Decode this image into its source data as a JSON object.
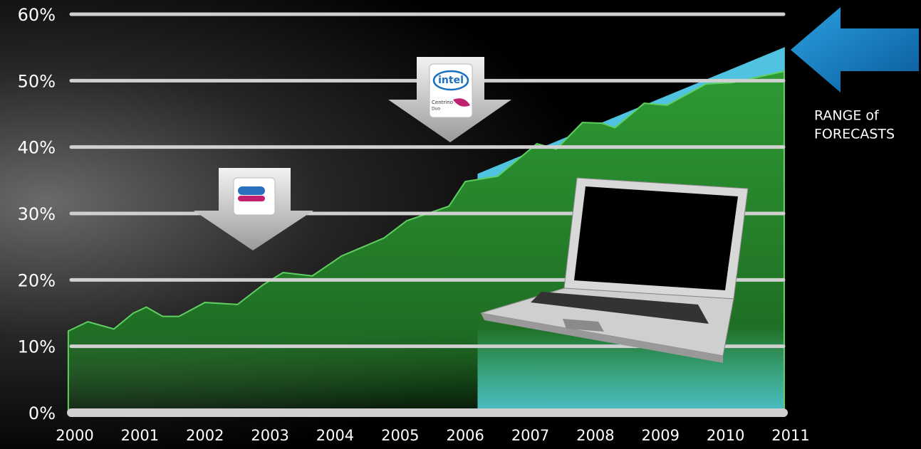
{
  "chart_data": {
    "type": "area",
    "series": [
      {
        "color": "#4fc3e0",
        "x": [
          2006.2,
          2010.9
        ],
        "values": [
          35.9,
          54.9
        ]
      },
      {
        "color": "#2e9a34",
        "x": [
          1999.9,
          2000.2,
          2000.6,
          2000.9,
          2001.1,
          2001.35,
          2001.6,
          2002.0,
          2002.5,
          2002.9,
          2003.2,
          2003.65,
          2004.1,
          2004.75,
          2005.1,
          2005.75,
          2006.0,
          2006.5,
          2007.1,
          2007.4,
          2007.8,
          2008.1,
          2008.3,
          2008.75,
          2009.1,
          2009.7,
          2010.1,
          2010.9
        ],
        "values": [
          12.3,
          13.7,
          12.6,
          15.0,
          15.9,
          14.5,
          14.5,
          16.6,
          16.3,
          19.3,
          21.1,
          20.6,
          23.6,
          26.3,
          28.9,
          31.1,
          34.8,
          35.6,
          40.5,
          39.7,
          43.7,
          43.6,
          42.9,
          46.6,
          46.3,
          49.5,
          49.7,
          51.4
        ]
      }
    ],
    "xlim": [
      2000,
      2011
    ],
    "xticks": [
      2000,
      2001,
      2002,
      2003,
      2004,
      2005,
      2006,
      2007,
      2008,
      2009,
      2010,
      2011
    ],
    "ylim": [
      0,
      60
    ],
    "yticks": [
      {
        "value": 0,
        "label": "0%"
      },
      {
        "value": 10,
        "label": "10%"
      },
      {
        "value": 20,
        "label": "20%"
      },
      {
        "value": 30,
        "label": "30%"
      },
      {
        "value": 40,
        "label": "40%"
      },
      {
        "value": 50,
        "label": "50%"
      },
      {
        "value": 60,
        "label": "60%"
      }
    ],
    "grid": true,
    "annotations": [
      "RANGE of",
      "FORECASTS"
    ],
    "logo_text": [
      "intel",
      "Centrino",
      "Duo"
    ]
  }
}
